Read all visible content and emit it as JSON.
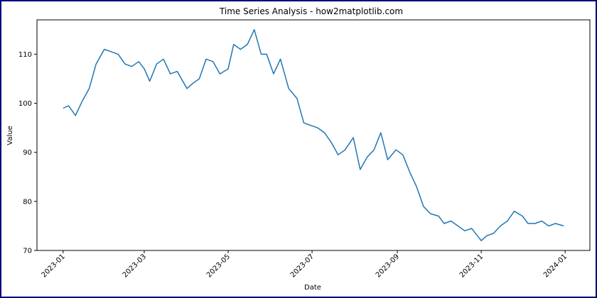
{
  "chart_data": {
    "type": "line",
    "title": "Time Series Analysis - how2matplotlib.com",
    "xlabel": "Date",
    "ylabel": "Value",
    "xlim": [
      "2022-12-13",
      "2024-01-19"
    ],
    "ylim": [
      70,
      117
    ],
    "grid": false,
    "x_ticks": [
      "2023-01",
      "2023-03",
      "2023-05",
      "2023-07",
      "2023-09",
      "2023-11",
      "2024-01"
    ],
    "y_ticks": [
      70,
      80,
      90,
      100,
      110
    ],
    "series": [
      {
        "color": "#1f77b4",
        "x": [
          "2023-01-01",
          "2023-01-05",
          "2023-01-10",
          "2023-01-15",
          "2023-01-20",
          "2023-01-25",
          "2023-01-31",
          "2023-02-05",
          "2023-02-10",
          "2023-02-15",
          "2023-02-20",
          "2023-02-25",
          "2023-03-01",
          "2023-03-05",
          "2023-03-10",
          "2023-03-15",
          "2023-03-20",
          "2023-03-25",
          "2023-04-01",
          "2023-04-05",
          "2023-04-10",
          "2023-04-15",
          "2023-04-20",
          "2023-04-25",
          "2023-05-01",
          "2023-05-05",
          "2023-05-10",
          "2023-05-15",
          "2023-05-20",
          "2023-05-25",
          "2023-05-29",
          "2023-06-03",
          "2023-06-08",
          "2023-06-14",
          "2023-06-20",
          "2023-06-25",
          "2023-06-30",
          "2023-07-05",
          "2023-07-10",
          "2023-07-15",
          "2023-07-20",
          "2023-07-25",
          "2023-07-31",
          "2023-08-05",
          "2023-08-10",
          "2023-08-15",
          "2023-08-20",
          "2023-08-25",
          "2023-08-31",
          "2023-09-05",
          "2023-09-10",
          "2023-09-15",
          "2023-09-20",
          "2023-09-25",
          "2023-10-01",
          "2023-10-05",
          "2023-10-10",
          "2023-10-15",
          "2023-10-20",
          "2023-10-25",
          "2023-11-01",
          "2023-11-05",
          "2023-11-10",
          "2023-11-15",
          "2023-11-20",
          "2023-11-25",
          "2023-12-01",
          "2023-12-05",
          "2023-12-10",
          "2023-12-15",
          "2023-12-20",
          "2023-12-25",
          "2023-12-31"
        ],
        "y": [
          99,
          99.5,
          97.5,
          100.5,
          103,
          108,
          111,
          110.5,
          110,
          108,
          107.5,
          108.5,
          107,
          104.5,
          108,
          109,
          106,
          106.5,
          103,
          104,
          105,
          109,
          108.5,
          106,
          107,
          112,
          111,
          112,
          115,
          110,
          110,
          106,
          109,
          103,
          101,
          96,
          95.5,
          95,
          94,
          92,
          89.5,
          90.5,
          93,
          86.5,
          89,
          90.5,
          94,
          88.5,
          90.5,
          89.5,
          86,
          83,
          79,
          77.5,
          77,
          75.5,
          76,
          75,
          74,
          74.5,
          72,
          73,
          73.5,
          75,
          76,
          78,
          77,
          75.5,
          75.5,
          76,
          75,
          75.5,
          75
        ]
      }
    ]
  }
}
